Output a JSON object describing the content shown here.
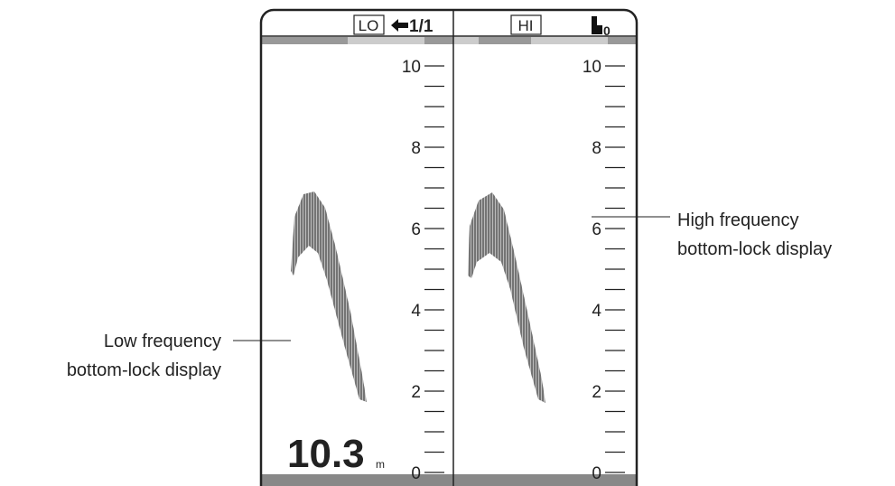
{
  "header": {
    "low_label": "LO",
    "range": "1/1",
    "high_label": "HI",
    "shift": "0"
  },
  "left_panel": {
    "scale_labels": [
      "10",
      "8",
      "6",
      "4",
      "2",
      "0"
    ]
  },
  "right_panel": {
    "scale_labels": [
      "10",
      "8",
      "6",
      "4",
      "2",
      "0"
    ]
  },
  "depth": {
    "value": "10.3",
    "unit": "m"
  },
  "callouts": {
    "low": {
      "line1": "Low frequency",
      "line2": "bottom-lock display"
    },
    "high": {
      "line1": "High frequency",
      "line2": "bottom-lock display"
    }
  }
}
